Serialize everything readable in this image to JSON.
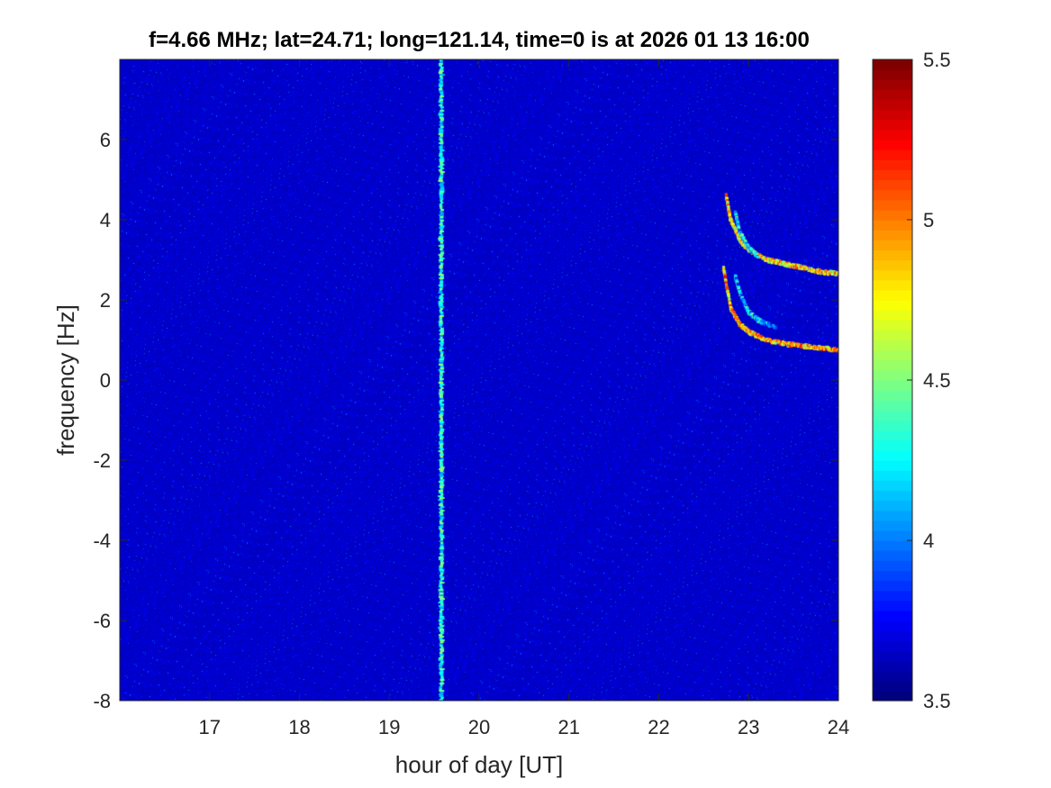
{
  "chart_data": {
    "type": "heatmap",
    "title": "f=4.66 MHz;  lat=24.71; long=121.14, time=0 is at 2026 01 13 16:00",
    "xlabel": "hour of day [UT]",
    "ylabel": "frequency [Hz]",
    "xlim": [
      16,
      24
    ],
    "ylim": [
      -8,
      8
    ],
    "xticks": [
      17,
      18,
      19,
      20,
      21,
      22,
      23,
      24
    ],
    "yticks": [
      -8,
      -6,
      -4,
      -2,
      0,
      2,
      4,
      6
    ],
    "colorbar": {
      "colormap": "jet",
      "clim": [
        3.5,
        5.5
      ],
      "ticks": [
        3.5,
        4,
        4.5,
        5,
        5.5
      ]
    },
    "grid": false,
    "background_level": 3.65,
    "features": [
      {
        "label": "vertical broadband stripe",
        "x": 19.58,
        "y_range": [
          -8,
          8
        ],
        "intensity": 4.3
      },
      {
        "label": "upper Doppler trace",
        "points": [
          [
            22.75,
            4.6
          ],
          [
            22.8,
            4.0
          ],
          [
            22.9,
            3.5
          ],
          [
            23.0,
            3.25
          ],
          [
            23.2,
            3.0
          ],
          [
            23.4,
            2.9
          ],
          [
            23.6,
            2.8
          ],
          [
            23.8,
            2.7
          ],
          [
            24.0,
            2.65
          ]
        ],
        "intensity": 5.2
      },
      {
        "label": "upper Doppler trace (secondary)",
        "points": [
          [
            22.85,
            4.2
          ],
          [
            22.9,
            3.7
          ],
          [
            23.0,
            3.3
          ],
          [
            23.1,
            3.1
          ]
        ],
        "intensity": 4.6
      },
      {
        "label": "lower Doppler trace",
        "points": [
          [
            22.72,
            2.8
          ],
          [
            22.8,
            1.8
          ],
          [
            22.9,
            1.4
          ],
          [
            23.0,
            1.2
          ],
          [
            23.2,
            1.0
          ],
          [
            23.4,
            0.9
          ],
          [
            23.6,
            0.85
          ],
          [
            23.8,
            0.8
          ],
          [
            24.0,
            0.75
          ]
        ],
        "intensity": 5.3
      },
      {
        "label": "lower Doppler trace (secondary)",
        "points": [
          [
            22.85,
            2.6
          ],
          [
            22.9,
            2.2
          ],
          [
            23.0,
            1.7
          ],
          [
            23.1,
            1.5
          ],
          [
            23.3,
            1.3
          ]
        ],
        "intensity": 4.5
      }
    ]
  }
}
